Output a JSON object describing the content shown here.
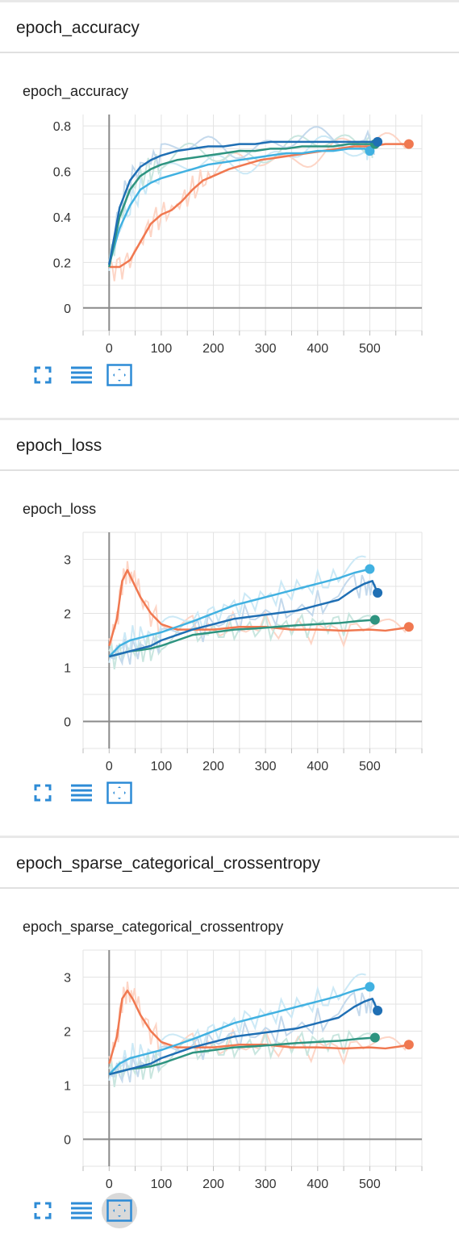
{
  "sections": [
    {
      "header": "epoch_accuracy",
      "card_title": "epoch_accuracy"
    },
    {
      "header": "epoch_loss",
      "card_title": "epoch_loss"
    },
    {
      "header": "epoch_sparse_categorical_crossentropy",
      "card_title": "epoch_sparse_categorical_crossentropy"
    }
  ],
  "toolbar_icons": [
    "expand-icon",
    "legend-lines-icon",
    "fit-domain-icon"
  ],
  "colors": {
    "orange": "#f07850",
    "dark_blue": "#1f6fb4",
    "light_blue": "#41b1e1",
    "green": "#2e9480"
  },
  "chart_data": [
    {
      "type": "line",
      "title": "epoch_accuracy",
      "xlim": [
        -50,
        600
      ],
      "ylim": [
        -0.1,
        0.85
      ],
      "xticks": [
        0,
        100,
        200,
        300,
        400,
        500
      ],
      "yticks": [
        0,
        0.2,
        0.4,
        0.6,
        0.8
      ],
      "ytick_labels": [
        "0",
        "0.2",
        "0.4",
        "0.6",
        "0.8"
      ],
      "grid": true,
      "series": [
        {
          "color": "orange",
          "x": [
            0,
            20,
            40,
            60,
            80,
            100,
            120,
            140,
            160,
            180,
            200,
            230,
            260,
            290,
            320,
            350,
            380,
            410,
            440,
            470,
            500,
            530,
            560,
            575
          ],
          "y": [
            0.18,
            0.18,
            0.21,
            0.29,
            0.37,
            0.41,
            0.43,
            0.47,
            0.52,
            0.56,
            0.58,
            0.61,
            0.63,
            0.65,
            0.66,
            0.67,
            0.68,
            0.69,
            0.7,
            0.71,
            0.71,
            0.72,
            0.72,
            0.72
          ]
        },
        {
          "color": "light_blue",
          "x": [
            0,
            20,
            40,
            60,
            80,
            100,
            130,
            160,
            190,
            220,
            250,
            280,
            310,
            340,
            370,
            400,
            430,
            460,
            490,
            500
          ],
          "y": [
            0.19,
            0.35,
            0.45,
            0.52,
            0.55,
            0.57,
            0.59,
            0.61,
            0.63,
            0.64,
            0.65,
            0.66,
            0.67,
            0.68,
            0.68,
            0.69,
            0.69,
            0.7,
            0.7,
            0.69
          ]
        },
        {
          "color": "green",
          "x": [
            0,
            20,
            40,
            60,
            80,
            100,
            130,
            160,
            190,
            220,
            250,
            280,
            310,
            340,
            370,
            400,
            430,
            460,
            490,
            510
          ],
          "y": [
            0.18,
            0.4,
            0.52,
            0.58,
            0.61,
            0.63,
            0.65,
            0.66,
            0.67,
            0.68,
            0.69,
            0.69,
            0.7,
            0.7,
            0.71,
            0.71,
            0.71,
            0.72,
            0.72,
            0.72
          ]
        },
        {
          "color": "dark_blue",
          "x": [
            0,
            20,
            40,
            60,
            80,
            100,
            130,
            160,
            190,
            220,
            250,
            280,
            310,
            340,
            370,
            400,
            430,
            460,
            490,
            515
          ],
          "y": [
            0.19,
            0.44,
            0.56,
            0.62,
            0.65,
            0.67,
            0.69,
            0.7,
            0.71,
            0.71,
            0.72,
            0.72,
            0.73,
            0.73,
            0.73,
            0.73,
            0.73,
            0.73,
            0.73,
            0.73
          ]
        }
      ]
    },
    {
      "type": "line",
      "title": "epoch_loss",
      "xlim": [
        -50,
        600
      ],
      "ylim": [
        -0.5,
        3.5
      ],
      "xticks": [
        0,
        100,
        200,
        300,
        400,
        500
      ],
      "yticks": [
        0,
        1,
        2,
        3
      ],
      "ytick_labels": [
        "0",
        "1",
        "2",
        "3"
      ],
      "grid": true,
      "series": [
        {
          "color": "orange",
          "x": [
            0,
            15,
            25,
            35,
            45,
            60,
            80,
            100,
            130,
            160,
            200,
            250,
            300,
            350,
            400,
            450,
            500,
            530,
            560,
            575
          ],
          "y": [
            1.4,
            1.9,
            2.6,
            2.8,
            2.6,
            2.3,
            2.0,
            1.8,
            1.7,
            1.7,
            1.7,
            1.75,
            1.75,
            1.7,
            1.7,
            1.68,
            1.7,
            1.68,
            1.72,
            1.75
          ]
        },
        {
          "color": "light_blue",
          "x": [
            0,
            20,
            40,
            60,
            80,
            100,
            130,
            160,
            200,
            240,
            280,
            320,
            360,
            400,
            440,
            470,
            500
          ],
          "y": [
            1.2,
            1.4,
            1.5,
            1.55,
            1.6,
            1.65,
            1.75,
            1.85,
            2.0,
            2.15,
            2.25,
            2.35,
            2.45,
            2.55,
            2.65,
            2.75,
            2.82
          ]
        },
        {
          "color": "green",
          "x": [
            0,
            20,
            40,
            60,
            80,
            100,
            130,
            160,
            200,
            240,
            280,
            320,
            360,
            400,
            440,
            480,
            510
          ],
          "y": [
            1.2,
            1.25,
            1.3,
            1.32,
            1.35,
            1.4,
            1.5,
            1.6,
            1.65,
            1.7,
            1.72,
            1.75,
            1.78,
            1.8,
            1.82,
            1.86,
            1.88
          ]
        },
        {
          "color": "dark_blue",
          "x": [
            0,
            20,
            40,
            60,
            80,
            100,
            130,
            160,
            200,
            240,
            280,
            320,
            360,
            400,
            440,
            470,
            490,
            505,
            515
          ],
          "y": [
            1.2,
            1.25,
            1.3,
            1.35,
            1.4,
            1.5,
            1.6,
            1.7,
            1.8,
            1.9,
            1.95,
            2.0,
            2.05,
            2.15,
            2.25,
            2.45,
            2.55,
            2.6,
            2.38
          ]
        }
      ]
    },
    {
      "type": "line",
      "title": "epoch_sparse_categorical_crossentropy",
      "xlim": [
        -50,
        600
      ],
      "ylim": [
        -0.5,
        3.5
      ],
      "xticks": [
        0,
        100,
        200,
        300,
        400,
        500
      ],
      "yticks": [
        0,
        1,
        2,
        3
      ],
      "ytick_labels": [
        "0",
        "1",
        "2",
        "3"
      ],
      "grid": true,
      "series": [
        {
          "color": "orange",
          "x": [
            0,
            15,
            25,
            35,
            45,
            60,
            80,
            100,
            130,
            160,
            200,
            250,
            300,
            350,
            400,
            450,
            500,
            530,
            560,
            575
          ],
          "y": [
            1.4,
            1.9,
            2.6,
            2.75,
            2.6,
            2.3,
            2.0,
            1.8,
            1.7,
            1.7,
            1.7,
            1.75,
            1.75,
            1.7,
            1.7,
            1.68,
            1.7,
            1.68,
            1.72,
            1.75
          ]
        },
        {
          "color": "light_blue",
          "x": [
            0,
            20,
            40,
            60,
            80,
            100,
            130,
            160,
            200,
            240,
            280,
            320,
            360,
            400,
            440,
            470,
            500
          ],
          "y": [
            1.2,
            1.4,
            1.5,
            1.55,
            1.6,
            1.65,
            1.75,
            1.85,
            2.0,
            2.15,
            2.25,
            2.35,
            2.45,
            2.55,
            2.65,
            2.75,
            2.82
          ]
        },
        {
          "color": "green",
          "x": [
            0,
            20,
            40,
            60,
            80,
            100,
            130,
            160,
            200,
            240,
            280,
            320,
            360,
            400,
            440,
            480,
            510
          ],
          "y": [
            1.2,
            1.25,
            1.3,
            1.32,
            1.35,
            1.4,
            1.5,
            1.6,
            1.65,
            1.7,
            1.72,
            1.75,
            1.78,
            1.8,
            1.82,
            1.86,
            1.88
          ]
        },
        {
          "color": "dark_blue",
          "x": [
            0,
            20,
            40,
            60,
            80,
            100,
            130,
            160,
            200,
            240,
            280,
            320,
            360,
            400,
            440,
            470,
            490,
            505,
            515
          ],
          "y": [
            1.2,
            1.25,
            1.3,
            1.35,
            1.4,
            1.5,
            1.6,
            1.7,
            1.8,
            1.9,
            1.95,
            2.0,
            2.05,
            2.15,
            2.25,
            2.45,
            2.55,
            2.6,
            2.38
          ]
        }
      ]
    }
  ]
}
